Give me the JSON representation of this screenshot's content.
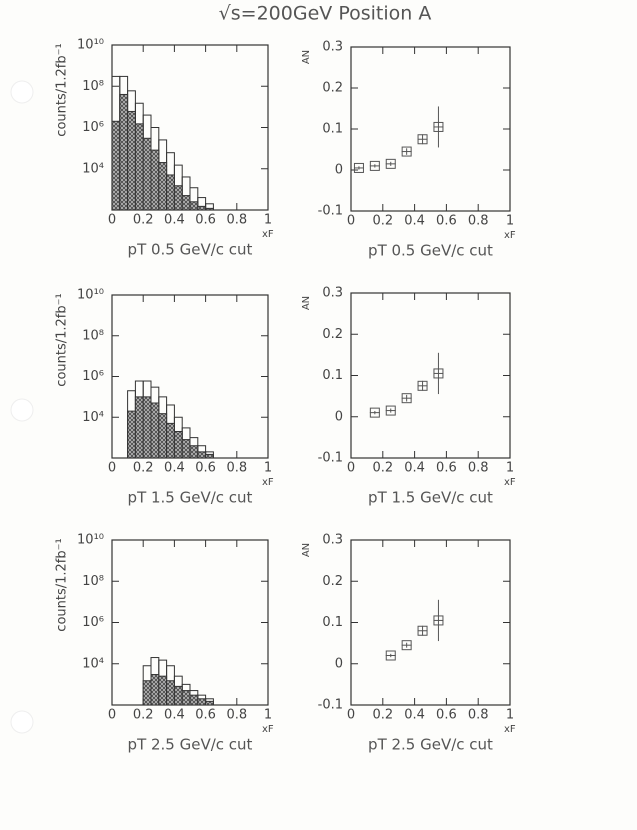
{
  "title": "√s=200GeV Position A",
  "chart_data": [
    {
      "type": "histogram",
      "caption": "pT 0.5 GeV/c cut",
      "ylabel": "counts/1.2fb⁻¹",
      "xlabel": "xF",
      "log_y": true,
      "xlim": [
        0,
        1
      ],
      "xticks": [
        0,
        0.2,
        0.4,
        0.6,
        0.8,
        1
      ],
      "ylim": [
        100,
        10000000000
      ],
      "yticks": [
        {
          "value": 10000,
          "label": "10⁴"
        },
        {
          "value": 1000000,
          "label": "10⁶"
        },
        {
          "value": 100000000,
          "label": "10⁸"
        },
        {
          "value": 10000000000,
          "label": "10¹⁰"
        }
      ],
      "bins": [
        0,
        0.05,
        0.1,
        0.15,
        0.2,
        0.25,
        0.3,
        0.35,
        0.4,
        0.45,
        0.5,
        0.55,
        0.6,
        0.65
      ],
      "series": [
        {
          "color": "#333",
          "hatched": false,
          "values": [
            300000000,
            300000000,
            60000000,
            15000000,
            4000000,
            1000000,
            250000,
            60000,
            15000,
            4000,
            1200,
            400,
            200
          ]
        },
        {
          "color": "#333",
          "hatched": true,
          "values": [
            2000000,
            40000000,
            6000000,
            1500000,
            300000,
            80000,
            20000,
            5000,
            1500,
            500,
            250,
            150,
            120
          ]
        }
      ]
    },
    {
      "type": "scatter",
      "caption": "pT 0.5 GeV/c cut",
      "ylabel": "AN",
      "xlabel": "xF",
      "xlim": [
        0,
        1
      ],
      "xticks": [
        0,
        0.2,
        0.4,
        0.6,
        0.8,
        1
      ],
      "ylim": [
        -0.1,
        0.3
      ],
      "yticks": [
        -0.1,
        0,
        0.1,
        0.2,
        0.3
      ],
      "x": [
        0.05,
        0.15,
        0.25,
        0.35,
        0.45,
        0.55
      ],
      "values": [
        0.005,
        0.01,
        0.015,
        0.045,
        0.075,
        0.105
      ],
      "errors": [
        0.004,
        0.004,
        0.005,
        0.008,
        0.012,
        0.05
      ],
      "color": "#555"
    },
    {
      "type": "histogram",
      "caption": "pT 1.5 GeV/c cut",
      "ylabel": "counts/1.2fb⁻¹",
      "xlabel": "xF",
      "log_y": true,
      "xlim": [
        0,
        1
      ],
      "xticks": [
        0,
        0.2,
        0.4,
        0.6,
        0.8,
        1
      ],
      "ylim": [
        100,
        10000000000
      ],
      "yticks": [
        {
          "value": 10000,
          "label": "10⁴"
        },
        {
          "value": 1000000,
          "label": "10⁶"
        },
        {
          "value": 100000000,
          "label": "10⁸"
        },
        {
          "value": 10000000000,
          "label": "10¹⁰"
        }
      ],
      "bins": [
        0.1,
        0.15,
        0.2,
        0.25,
        0.3,
        0.35,
        0.4,
        0.45,
        0.5,
        0.55,
        0.6,
        0.65
      ],
      "series": [
        {
          "color": "#333",
          "hatched": false,
          "values": [
            200000,
            600000,
            600000,
            300000,
            100000,
            40000,
            10000,
            3000,
            1000,
            400,
            200
          ]
        },
        {
          "color": "#333",
          "hatched": true,
          "values": [
            20000,
            100000,
            100000,
            50000,
            15000,
            5000,
            2000,
            800,
            400,
            200,
            150
          ]
        }
      ]
    },
    {
      "type": "scatter",
      "caption": "pT 1.5 GeV/c cut",
      "ylabel": "AN",
      "xlabel": "xF",
      "xlim": [
        0,
        1
      ],
      "xticks": [
        0,
        0.2,
        0.4,
        0.6,
        0.8,
        1
      ],
      "ylim": [
        -0.1,
        0.3
      ],
      "yticks": [
        -0.1,
        0,
        0.1,
        0.2,
        0.3
      ],
      "x": [
        0.15,
        0.25,
        0.35,
        0.45,
        0.55
      ],
      "values": [
        0.01,
        0.015,
        0.045,
        0.075,
        0.105
      ],
      "errors": [
        0.004,
        0.005,
        0.008,
        0.012,
        0.05
      ],
      "color": "#555"
    },
    {
      "type": "histogram",
      "caption": "pT 2.5 GeV/c cut",
      "ylabel": "counts/1.2fb⁻¹",
      "xlabel": "xF",
      "log_y": true,
      "xlim": [
        0,
        1
      ],
      "xticks": [
        0,
        0.2,
        0.4,
        0.6,
        0.8,
        1
      ],
      "ylim": [
        100,
        10000000000
      ],
      "yticks": [
        {
          "value": 10000,
          "label": "10⁴"
        },
        {
          "value": 1000000,
          "label": "10⁶"
        },
        {
          "value": 100000000,
          "label": "10⁸"
        },
        {
          "value": 10000000000,
          "label": "10¹⁰"
        }
      ],
      "bins": [
        0.2,
        0.25,
        0.3,
        0.35,
        0.4,
        0.45,
        0.5,
        0.55,
        0.6,
        0.65
      ],
      "series": [
        {
          "color": "#333",
          "hatched": false,
          "values": [
            8000,
            20000,
            15000,
            8000,
            2500,
            1000,
            500,
            300,
            200
          ]
        },
        {
          "color": "#333",
          "hatched": true,
          "values": [
            1500,
            3000,
            2500,
            1500,
            800,
            500,
            300,
            200,
            150
          ]
        }
      ]
    },
    {
      "type": "scatter",
      "caption": "pT 2.5 GeV/c cut",
      "ylabel": "AN",
      "xlabel": "xF",
      "xlim": [
        0,
        1
      ],
      "xticks": [
        0,
        0.2,
        0.4,
        0.6,
        0.8,
        1
      ],
      "ylim": [
        -0.1,
        0.3
      ],
      "yticks": [
        -0.1,
        0,
        0.1,
        0.2,
        0.3
      ],
      "x": [
        0.25,
        0.35,
        0.45,
        0.55
      ],
      "values": [
        0.02,
        0.045,
        0.08,
        0.105
      ],
      "errors": [
        0.004,
        0.006,
        0.012,
        0.05
      ],
      "color": "#555"
    }
  ]
}
